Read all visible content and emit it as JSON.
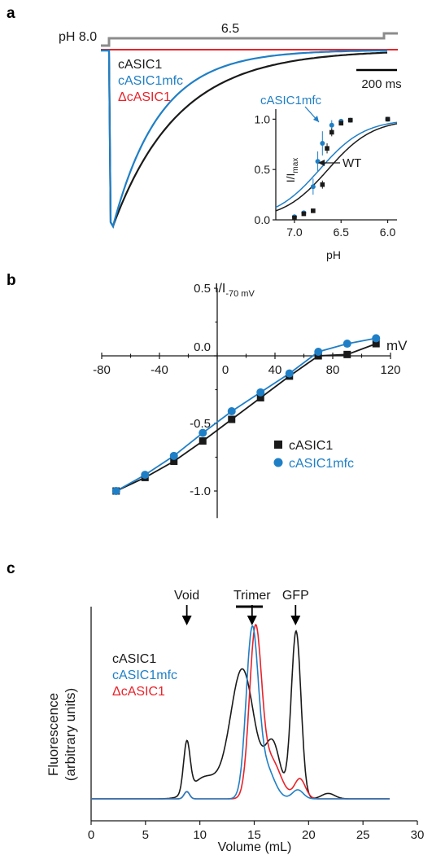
{
  "panels": {
    "a": "a",
    "b": "b",
    "c": "c"
  },
  "colors": {
    "black": "#1a1a1a",
    "blue": "#1f7fc6",
    "red": "#e8232a",
    "gray": "#8c8c8c"
  },
  "chart_data": [
    {
      "id": "panel-a-traces",
      "type": "line",
      "ph_protocol": {
        "start_label": "pH 8.0",
        "step_label": "6.5"
      },
      "legend": [
        "cASIC1",
        "cASIC1mfc",
        "ΔcASIC1"
      ],
      "scale_bar": {
        "label": "200 ms",
        "value": 200
      },
      "series": [
        {
          "name": "cASIC1",
          "peak": -1.0,
          "tau_ms": 320
        },
        {
          "name": "cASIC1mfc",
          "peak": -1.0,
          "tau_ms": 230
        },
        {
          "name": "ΔcASIC1",
          "peak": 0.0,
          "tau_ms": 0
        }
      ]
    },
    {
      "id": "panel-a-inset",
      "type": "scatter",
      "xlabel": "pH",
      "ylabel_main": "I/I",
      "ylabel_sub": "max",
      "xlim": [
        7.2,
        5.9
      ],
      "ylim": [
        0.0,
        1.1
      ],
      "x_ticks": [
        "7.0",
        "6.5",
        "6.0"
      ],
      "y_ticks": [
        "0.0",
        "0.5",
        "1.0"
      ],
      "annotations": {
        "blue": "cASIC1mfc",
        "black": "WT"
      },
      "series": [
        {
          "name": "cASIC1mfc",
          "pH50": 6.73,
          "hill": 18,
          "x": [
            7.0,
            6.9,
            6.8,
            6.75,
            6.7,
            6.6,
            6.5,
            6.4,
            6.0
          ],
          "y": [
            0.03,
            0.07,
            0.33,
            0.58,
            0.76,
            0.94,
            0.98,
            0.99,
            1.0
          ],
          "err": [
            0.02,
            0.02,
            0.08,
            0.1,
            0.12,
            0.05,
            0.02,
            0.01,
            0.01
          ]
        },
        {
          "name": "WT",
          "pH50": 6.64,
          "hill": 18,
          "x": [
            7.0,
            6.9,
            6.8,
            6.7,
            6.65,
            6.6,
            6.5,
            6.4,
            6.0
          ],
          "y": [
            0.02,
            0.06,
            0.09,
            0.35,
            0.71,
            0.87,
            0.96,
            0.99,
            1.0
          ],
          "err": [
            0.01,
            0.01,
            0.02,
            0.04,
            0.05,
            0.04,
            0.02,
            0.01,
            0.01
          ]
        }
      ]
    },
    {
      "id": "panel-b-iv",
      "type": "line",
      "xlabel": "mV",
      "ylabel_main": "I/I",
      "ylabel_sub": "-70 mV",
      "xlim": [
        -80,
        120
      ],
      "ylim": [
        -1.2,
        0.5
      ],
      "x_ticks": [
        "-80",
        "-40",
        "0",
        "40",
        "80",
        "120"
      ],
      "y_ticks": [
        "0.5",
        "0.0",
        "-0.5",
        "-1.0"
      ],
      "legend": [
        "cASIC1",
        "cASIC1mfc"
      ],
      "series": [
        {
          "name": "cASIC1",
          "x": [
            -70,
            -50,
            -30,
            -10,
            10,
            30,
            50,
            70,
            90,
            110
          ],
          "y": [
            -1.0,
            -0.9,
            -0.78,
            -0.63,
            -0.47,
            -0.31,
            -0.15,
            0.0,
            0.01,
            0.09
          ]
        },
        {
          "name": "cASIC1mfc",
          "x": [
            -70,
            -50,
            -30,
            -10,
            10,
            30,
            50,
            70,
            90,
            110
          ],
          "y": [
            -1.0,
            -0.88,
            -0.74,
            -0.57,
            -0.41,
            -0.27,
            -0.13,
            0.03,
            0.09,
            0.13
          ]
        }
      ]
    },
    {
      "id": "panel-c-fsec",
      "type": "line",
      "xlabel": "Volume (mL)",
      "ylabel_line1": "Fluorescence",
      "ylabel_line2": "(arbitrary units)",
      "xlim": [
        0,
        30
      ],
      "x_ticks": [
        "0",
        "5",
        "10",
        "15",
        "20",
        "25",
        "30"
      ],
      "markers": [
        {
          "label": "Void",
          "x": 8.8
        },
        {
          "label": "Trimer",
          "x": 14.8
        },
        {
          "label": "GFP",
          "x": 18.8
        }
      ],
      "legend": [
        "cASIC1",
        "cASIC1mfc",
        "ΔcASIC1"
      ],
      "series": [
        {
          "name": "cASIC1",
          "peaks": [
            {
              "x": 8.8,
              "h": 0.28,
              "w": 0.3
            },
            {
              "x": 10.5,
              "h": 0.12,
              "w": 1.2
            },
            {
              "x": 13.9,
              "h": 0.72,
              "w": 1.1
            },
            {
              "x": 16.7,
              "h": 0.3,
              "w": 0.7
            },
            {
              "x": 18.85,
              "h": 0.93,
              "w": 0.45
            },
            {
              "x": 21.8,
              "h": 0.03,
              "w": 0.6
            }
          ]
        },
        {
          "name": "cASIC1mfc",
          "peaks": [
            {
              "x": 8.8,
              "h": 0.04,
              "w": 0.25
            },
            {
              "x": 14.8,
              "h": 0.9,
              "w": 0.55
            },
            {
              "x": 16.0,
              "h": 0.18,
              "w": 0.8
            },
            {
              "x": 19.0,
              "h": 0.05,
              "w": 0.5
            }
          ]
        },
        {
          "name": "ΔcASIC1",
          "peaks": [
            {
              "x": 8.8,
              "h": 0.04,
              "w": 0.25
            },
            {
              "x": 15.1,
              "h": 0.9,
              "w": 0.55
            },
            {
              "x": 16.5,
              "h": 0.22,
              "w": 0.9
            },
            {
              "x": 19.2,
              "h": 0.11,
              "w": 0.5
            }
          ]
        }
      ]
    }
  ]
}
